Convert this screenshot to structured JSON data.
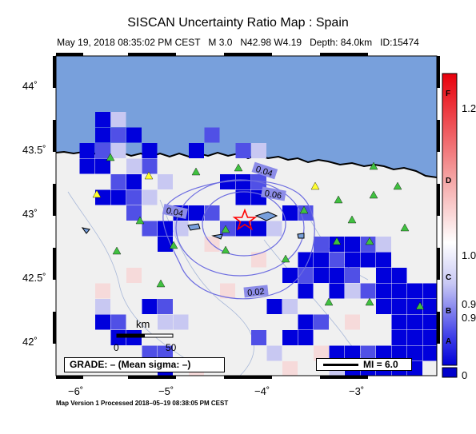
{
  "title": "SISCAN Uncertainty Ratio Map : Spain",
  "subtitle": "May 19, 2018 08:35:02 PM CEST   M 3.0   N42.98 W4.19   Depth: 84.0km   ID:15474",
  "latitude_labels": [
    "44˚",
    "43.5˚",
    "43˚",
    "42.5˚",
    "42˚"
  ],
  "longitude_labels": [
    "−6˚",
    "−5˚",
    "−4˚",
    "−3˚"
  ],
  "contour_labels": [
    "0.04",
    "0.06",
    "0.04",
    "0.02"
  ],
  "scale_bar": {
    "unit": "km",
    "tick_start": "0",
    "tick_end": "50"
  },
  "grade_text": "GRADE: – (Mean sigma: –)",
  "mi_legend": "MI = 6.0",
  "footer": "Map Version 1 Processed 2018–05–19 08:38:05 PM CEST",
  "colorbar": {
    "grade_letters": [
      "F",
      "D",
      "C",
      "B",
      "A"
    ],
    "value_labels": [
      "1.2",
      "1.0",
      "0.9",
      "0.9",
      "0"
    ],
    "colors": {
      "top": "#e8000b",
      "middle": "#ffffff",
      "bottom": "#0000d8",
      "base": "#0000cc"
    }
  },
  "map_colors": {
    "sea": "#78a0dc",
    "land": "#f0f0f0",
    "cell_blue": "#0000dc",
    "epicenter": "#ff0000"
  },
  "icons": {
    "epicenter": "star-icon",
    "station_normal": "green-triangle-icon",
    "station_warn": "yellow-triangle-icon"
  }
}
